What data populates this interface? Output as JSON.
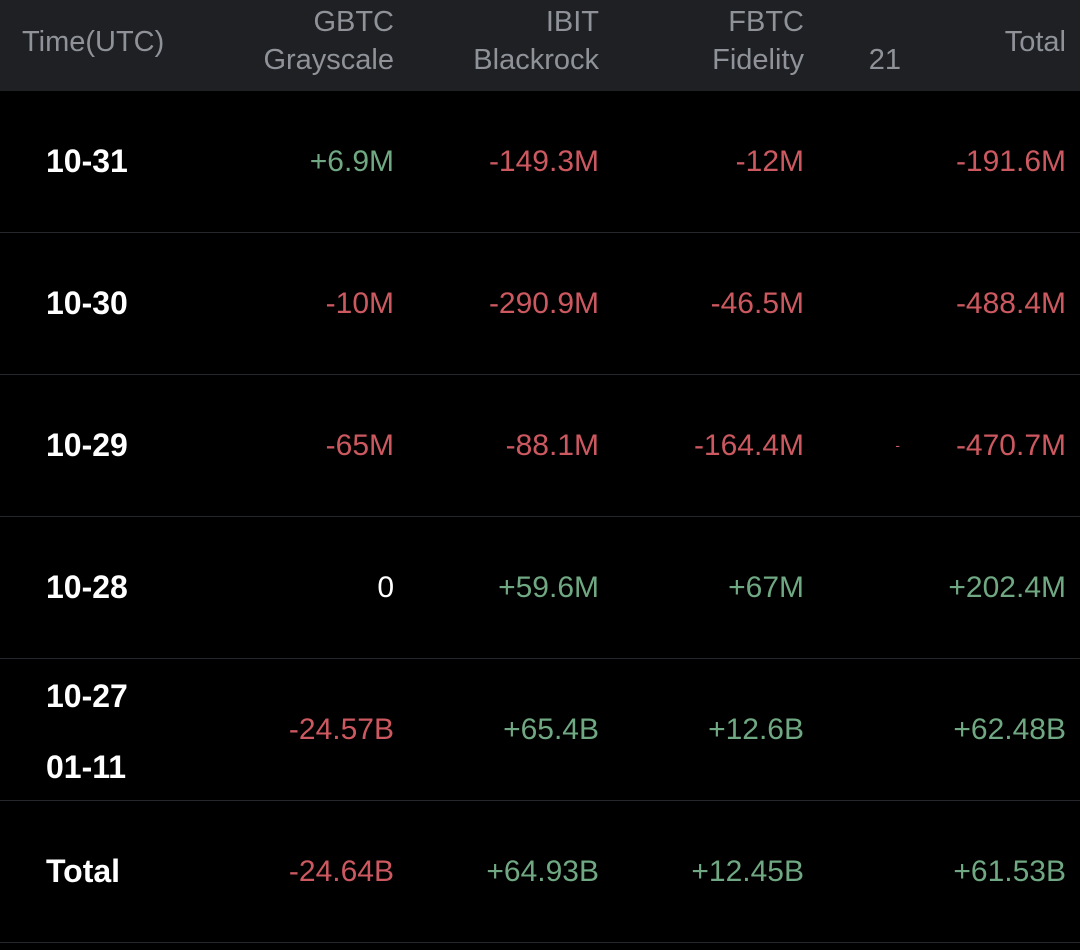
{
  "header": {
    "time": "Time(UTC)",
    "gbtc_ticker": "GBTC",
    "gbtc_name": "Grayscale",
    "ibit_ticker": "IBIT",
    "ibit_name": "Blackrock",
    "fbtc_ticker": "FBTC",
    "fbtc_name": "Fidelity",
    "col21": "21",
    "total": "Total"
  },
  "rows": [
    {
      "date": "10-31",
      "gbtc": "+6.9M",
      "ibit": "-149.3M",
      "fbtc": "-12M",
      "col21": "",
      "total": "-191.6M"
    },
    {
      "date": "10-30",
      "gbtc": "-10M",
      "ibit": "-290.9M",
      "fbtc": "-46.5M",
      "col21": "",
      "total": "-488.4M"
    },
    {
      "date": "10-29",
      "gbtc": "-65M",
      "ibit": "-88.1M",
      "fbtc": "-164.4M",
      "col21": "-",
      "total": "-470.7M"
    },
    {
      "date": "10-28",
      "gbtc": "0",
      "ibit": "+59.6M",
      "fbtc": "+67M",
      "col21": "",
      "total": "+202.4M"
    },
    {
      "date_start": "10-27",
      "date_end": "01-11",
      "gbtc": "-24.57B",
      "ibit": "+65.4B",
      "fbtc": "+12.6B",
      "col21": "",
      "total": "+62.48B"
    },
    {
      "date": "Total",
      "gbtc": "-24.64B",
      "ibit": "+64.93B",
      "fbtc": "+12.45B",
      "col21": "",
      "total": "+61.53B"
    }
  ],
  "colors": {
    "positive": "#6fa882",
    "negative": "#cc5860",
    "header_bg": "#1e2023",
    "header_text": "#8f9399",
    "background": "#000000"
  }
}
